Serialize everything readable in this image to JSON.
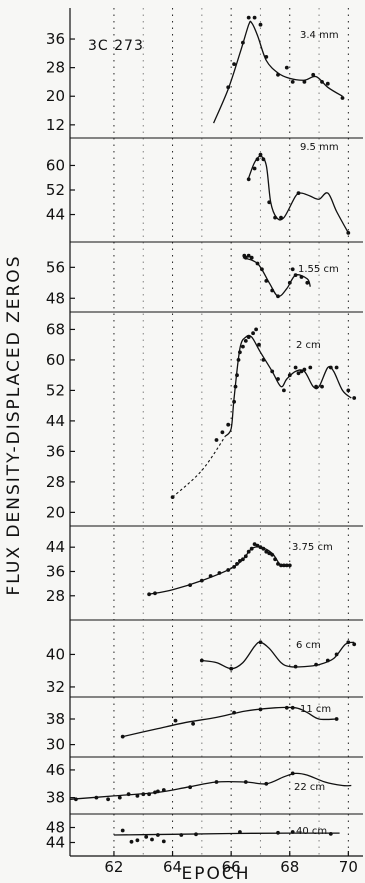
{
  "chart_data": {
    "type": "line",
    "source": "3C 273",
    "xlabel": "EPOCH",
    "ylabel": "FLUX DENSITY-DISPLACED ZEROS",
    "xlim": [
      60.5,
      70.5
    ],
    "xticks": [
      "62",
      "64",
      "66",
      "68",
      "70"
    ],
    "grid": "dotted",
    "panels": [
      {
        "name": "3.4 mm",
        "ylim": [
          10,
          43
        ],
        "yticks": [
          "12",
          "20",
          "28",
          "36"
        ],
        "curve": [
          [
            65.4,
            12.5
          ],
          [
            65.9,
            22
          ],
          [
            66.3,
            32
          ],
          [
            66.6,
            40
          ],
          [
            66.7,
            40.5
          ],
          [
            66.9,
            37
          ],
          [
            67.2,
            30
          ],
          [
            67.6,
            26.5
          ],
          [
            68.0,
            25
          ],
          [
            68.5,
            24.5
          ],
          [
            68.9,
            25.5
          ],
          [
            69.3,
            22.5
          ],
          [
            69.8,
            20
          ]
        ],
        "points": [
          [
            65.9,
            22.5
          ],
          [
            66.1,
            29
          ],
          [
            66.4,
            35
          ],
          [
            66.6,
            42
          ],
          [
            66.8,
            42
          ],
          [
            67.0,
            40
          ],
          [
            67.2,
            31
          ],
          [
            67.6,
            26
          ],
          [
            67.9,
            28
          ],
          [
            68.1,
            24
          ],
          [
            68.5,
            24
          ],
          [
            68.8,
            26
          ],
          [
            69.1,
            24
          ],
          [
            69.3,
            23.5
          ],
          [
            69.8,
            19.5
          ]
        ]
      },
      {
        "name": "9.5 mm",
        "ylim": [
          37,
          67
        ],
        "yticks": [
          "44",
          "52",
          "60"
        ],
        "curve": [
          [
            66.6,
            56
          ],
          [
            66.8,
            61
          ],
          [
            67.0,
            63
          ],
          [
            67.2,
            60
          ],
          [
            67.35,
            48
          ],
          [
            67.55,
            43
          ],
          [
            67.8,
            43
          ],
          [
            68.2,
            50
          ],
          [
            68.4,
            51
          ],
          [
            68.7,
            50
          ],
          [
            69.0,
            49
          ],
          [
            69.3,
            51
          ],
          [
            69.6,
            45
          ],
          [
            70.0,
            38
          ]
        ],
        "points": [
          [
            66.6,
            55.5
          ],
          [
            66.8,
            59
          ],
          [
            66.9,
            62
          ],
          [
            67.0,
            63.5
          ],
          [
            67.1,
            62
          ],
          [
            67.3,
            48
          ],
          [
            67.5,
            43
          ],
          [
            67.7,
            43
          ],
          [
            68.3,
            51
          ],
          [
            70.0,
            38
          ]
        ]
      },
      {
        "name": "1.55 cm",
        "ylim": [
          46,
          61
        ],
        "yticks": [
          "48",
          "56"
        ],
        "curve": [
          [
            66.4,
            58.5
          ],
          [
            66.9,
            57
          ],
          [
            67.3,
            52
          ],
          [
            67.6,
            48.5
          ],
          [
            67.9,
            50.5
          ],
          [
            68.2,
            54
          ],
          [
            68.6,
            53
          ],
          [
            68.7,
            51
          ]
        ],
        "points": [
          [
            66.45,
            59
          ],
          [
            66.5,
            58.5
          ],
          [
            66.6,
            59
          ],
          [
            66.7,
            58.5
          ],
          [
            66.9,
            57
          ],
          [
            67.05,
            55.5
          ],
          [
            67.2,
            52.5
          ],
          [
            67.4,
            50
          ],
          [
            67.6,
            48.5
          ],
          [
            68.0,
            52
          ],
          [
            68.1,
            55.5
          ],
          [
            68.2,
            54
          ],
          [
            68.4,
            53.5
          ],
          [
            68.6,
            52
          ]
        ]
      },
      {
        "name": "2 cm",
        "ylim": [
          18,
          71
        ],
        "yticks": [
          "20",
          "28",
          "36",
          "44",
          "52",
          "60",
          "68"
        ],
        "curve": [
          [
            64.0,
            24
          ],
          [
            65.0,
            31
          ],
          [
            65.8,
            40
          ],
          [
            66.0,
            42
          ],
          [
            66.1,
            50
          ],
          [
            66.3,
            63
          ],
          [
            66.5,
            66
          ],
          [
            66.7,
            66
          ],
          [
            67.0,
            62
          ],
          [
            67.4,
            57
          ],
          [
            67.7,
            53
          ],
          [
            67.9,
            55
          ],
          [
            68.2,
            57
          ],
          [
            68.5,
            57
          ],
          [
            68.8,
            53
          ],
          [
            69.0,
            53
          ],
          [
            69.3,
            58
          ],
          [
            69.5,
            57
          ],
          [
            69.8,
            52
          ],
          [
            70.1,
            50
          ]
        ],
        "points": [
          [
            64.0,
            24
          ],
          [
            65.5,
            39
          ],
          [
            65.7,
            41
          ],
          [
            65.9,
            43
          ],
          [
            66.1,
            49
          ],
          [
            66.15,
            53
          ],
          [
            66.2,
            56
          ],
          [
            66.25,
            60
          ],
          [
            66.3,
            62
          ],
          [
            66.4,
            63.5
          ],
          [
            66.5,
            65
          ],
          [
            66.6,
            66
          ],
          [
            66.75,
            67
          ],
          [
            66.85,
            68
          ],
          [
            66.95,
            64
          ],
          [
            67.1,
            60
          ],
          [
            67.4,
            57
          ],
          [
            67.6,
            55
          ],
          [
            67.8,
            52
          ],
          [
            68.0,
            56
          ],
          [
            68.2,
            58
          ],
          [
            68.3,
            56.5
          ],
          [
            68.4,
            57
          ],
          [
            68.5,
            57.5
          ],
          [
            68.7,
            58
          ],
          [
            68.9,
            53
          ],
          [
            69.1,
            53
          ],
          [
            69.4,
            58
          ],
          [
            69.6,
            58
          ],
          [
            70.0,
            52
          ],
          [
            70.2,
            50
          ]
        ]
      },
      {
        "name": "3.75 cm",
        "ylim": [
          22,
          49
        ],
        "yticks": [
          "28",
          "36",
          "44"
        ],
        "curve": [
          [
            63.2,
            28.5
          ],
          [
            64.0,
            30
          ],
          [
            65.0,
            33
          ],
          [
            66.0,
            37
          ],
          [
            66.4,
            40
          ],
          [
            66.7,
            43.5
          ],
          [
            67.0,
            44
          ],
          [
            67.4,
            42
          ],
          [
            67.7,
            38
          ],
          [
            68.0,
            38
          ]
        ],
        "points": [
          [
            63.2,
            28.5
          ],
          [
            63.4,
            28.8
          ],
          [
            64.6,
            31.5
          ],
          [
            65.0,
            33
          ],
          [
            65.3,
            34.5
          ],
          [
            65.6,
            35.5
          ],
          [
            65.9,
            36.5
          ],
          [
            66.1,
            37.5
          ],
          [
            66.2,
            38.5
          ],
          [
            66.3,
            39.5
          ],
          [
            66.4,
            40
          ],
          [
            66.5,
            41
          ],
          [
            66.6,
            42.5
          ],
          [
            66.7,
            43.5
          ],
          [
            66.8,
            45
          ],
          [
            66.9,
            44.5
          ],
          [
            67.0,
            44
          ],
          [
            67.1,
            43.5
          ],
          [
            67.2,
            42.5
          ],
          [
            67.3,
            42
          ],
          [
            67.4,
            41.5
          ],
          [
            67.5,
            40
          ],
          [
            67.6,
            38.5
          ],
          [
            67.7,
            38
          ],
          [
            67.8,
            38
          ],
          [
            67.9,
            38
          ],
          [
            68.0,
            38
          ]
        ]
      },
      {
        "name": "6 cm",
        "ylim": [
          31,
          47
        ],
        "yticks": [
          "32",
          "40"
        ],
        "curve": [
          [
            65.0,
            38.5
          ],
          [
            65.5,
            38
          ],
          [
            66.0,
            36.5
          ],
          [
            66.4,
            38
          ],
          [
            66.8,
            42
          ],
          [
            67.0,
            43
          ],
          [
            67.3,
            41.5
          ],
          [
            67.7,
            38
          ],
          [
            68.0,
            37
          ],
          [
            68.5,
            37
          ],
          [
            69.0,
            37.5
          ],
          [
            69.5,
            39
          ],
          [
            69.9,
            42.5
          ],
          [
            70.2,
            43
          ]
        ],
        "points": [
          [
            65.0,
            38.5
          ],
          [
            66.0,
            36.5
          ],
          [
            67.0,
            43
          ],
          [
            68.2,
            37
          ],
          [
            68.9,
            37.5
          ],
          [
            69.3,
            38.5
          ],
          [
            69.6,
            40
          ],
          [
            70.0,
            43
          ],
          [
            70.2,
            42.5
          ]
        ]
      },
      {
        "name": "11 cm",
        "ylim": [
          28,
          43
        ],
        "yticks": [
          "30",
          "38"
        ],
        "curve": [
          [
            62.3,
            32.5
          ],
          [
            63.5,
            35
          ],
          [
            64.5,
            37
          ],
          [
            65.5,
            38.5
          ],
          [
            66.5,
            40.5
          ],
          [
            67.5,
            41.5
          ],
          [
            68.2,
            41.5
          ],
          [
            68.6,
            40
          ],
          [
            69.0,
            38
          ],
          [
            69.6,
            38
          ]
        ],
        "points": [
          [
            62.3,
            32.5
          ],
          [
            64.1,
            37.5
          ],
          [
            64.7,
            36.5
          ],
          [
            66.1,
            40
          ],
          [
            67.0,
            41
          ],
          [
            67.9,
            41.5
          ],
          [
            68.1,
            41.5
          ],
          [
            69.6,
            38
          ]
        ]
      },
      {
        "name": "22 cm",
        "ylim": [
          35,
          48
        ],
        "yticks": [
          "38",
          "46"
        ],
        "curve": [
          [
            60.5,
            37.5
          ],
          [
            62.0,
            38.5
          ],
          [
            63.5,
            39.5
          ],
          [
            64.5,
            41
          ],
          [
            65.5,
            42.5
          ],
          [
            66.5,
            42.5
          ],
          [
            67.2,
            42
          ],
          [
            67.8,
            44
          ],
          [
            68.2,
            45
          ],
          [
            68.6,
            44.5
          ],
          [
            69.2,
            42.5
          ],
          [
            69.8,
            41.5
          ],
          [
            70.1,
            41.5
          ]
        ],
        "points": [
          [
            60.7,
            37.5
          ],
          [
            61.4,
            38
          ],
          [
            61.8,
            37.5
          ],
          [
            62.2,
            38
          ],
          [
            62.5,
            39
          ],
          [
            62.8,
            38.5
          ],
          [
            63.0,
            39
          ],
          [
            63.2,
            39
          ],
          [
            63.4,
            39.5
          ],
          [
            63.5,
            39.8
          ],
          [
            63.7,
            40.2
          ],
          [
            64.6,
            41
          ],
          [
            65.5,
            42.5
          ],
          [
            66.5,
            42.5
          ],
          [
            67.2,
            42
          ],
          [
            68.1,
            45
          ]
        ]
      },
      {
        "name": "40 cm",
        "ylim": [
          42,
          50
        ],
        "yticks": [
          "44",
          "48"
        ],
        "curve": [
          [
            62.0,
            46
          ],
          [
            64.0,
            46.2
          ],
          [
            66.0,
            46.4
          ],
          [
            68.0,
            46.5
          ],
          [
            69.7,
            46.5
          ]
        ],
        "points": [
          [
            62.3,
            47.2
          ],
          [
            62.6,
            44.2
          ],
          [
            62.8,
            44.6
          ],
          [
            63.1,
            45.5
          ],
          [
            63.3,
            44.8
          ],
          [
            63.5,
            46
          ],
          [
            63.7,
            44.3
          ],
          [
            64.3,
            46
          ],
          [
            64.8,
            46.2
          ],
          [
            66.3,
            46.8
          ],
          [
            67.6,
            46.6
          ],
          [
            68.1,
            46.8
          ],
          [
            69.4,
            46.3
          ]
        ]
      }
    ]
  }
}
